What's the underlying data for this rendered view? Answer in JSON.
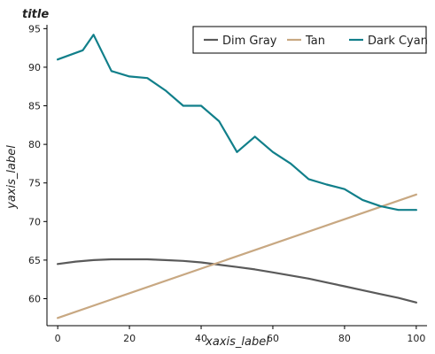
{
  "chart_data": {
    "type": "line",
    "title": "title",
    "xlabel": "xaxis_label",
    "ylabel": "yaxis_label",
    "xlim": [
      -3,
      103
    ],
    "ylim": [
      56.5,
      95.5
    ],
    "xticks": [
      0,
      20,
      40,
      60,
      80,
      100
    ],
    "yticks": [
      60,
      65,
      70,
      75,
      80,
      85,
      90,
      95
    ],
    "legend": "top",
    "grid": false,
    "series": [
      {
        "name": "Dim Gray",
        "color": "#5a5a5a",
        "x": [
          0,
          5,
          10,
          15,
          20,
          25,
          30,
          35,
          40,
          45,
          50,
          55,
          60,
          65,
          70,
          75,
          80,
          85,
          90,
          95,
          100
        ],
        "y": [
          64.5,
          64.8,
          65.0,
          65.1,
          65.1,
          65.1,
          65.0,
          64.9,
          64.7,
          64.4,
          64.1,
          63.8,
          63.4,
          63.0,
          62.6,
          62.1,
          61.6,
          61.1,
          60.6,
          60.1,
          59.5
        ]
      },
      {
        "name": "Tan",
        "color": "#c8a882",
        "x": [
          0,
          100
        ],
        "y": [
          57.5,
          73.5
        ]
      },
      {
        "name": "Dark Cyan",
        "color": "#117f8a",
        "x": [
          0,
          7,
          10,
          15,
          20,
          25,
          30,
          35,
          40,
          45,
          50,
          55,
          60,
          65,
          70,
          75,
          80,
          85,
          90,
          95,
          100
        ],
        "y": [
          91.0,
          92.2,
          94.2,
          89.5,
          88.8,
          88.6,
          87.0,
          85.0,
          85.0,
          83.0,
          79.0,
          81.0,
          79.0,
          77.5,
          75.5,
          74.8,
          74.2,
          72.8,
          72.0,
          71.5,
          71.5
        ]
      }
    ]
  }
}
